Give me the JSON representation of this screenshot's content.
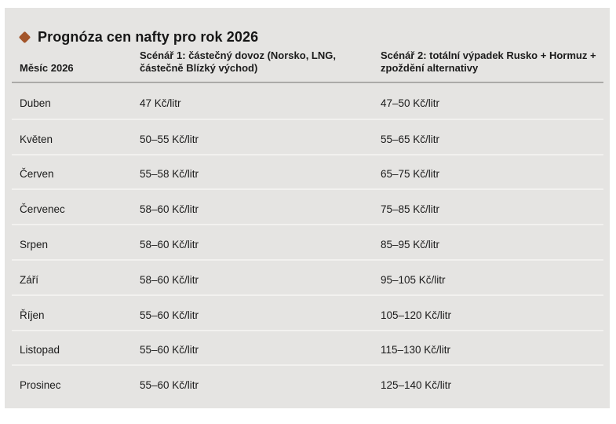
{
  "slide": {
    "title": "Prognóza cen nafty pro rok 2026",
    "accent_color": "#a3552a",
    "background_color": "#e5e4e2",
    "table": {
      "columns": [
        "Měsíc 2026",
        "Scénář 1: částečný dovoz (Norsko, LNG, částečně Blízký východ)",
        "Scénář 2: totální výpadek Rusko + Hormuz + zpoždění alternativy"
      ],
      "unit": "Kč/litr",
      "rows": [
        {
          "month": "Duben",
          "s1": "47 Kč/litr",
          "s2": "47–50 Kč/litr"
        },
        {
          "month": "Květen",
          "s1": "50–55 Kč/litr",
          "s2": "55–65 Kč/litr"
        },
        {
          "month": "Červen",
          "s1": "55–58 Kč/litr",
          "s2": "65–75 Kč/litr"
        },
        {
          "month": "Červenec",
          "s1": "58–60 Kč/litr",
          "s2": "75–85 Kč/litr"
        },
        {
          "month": "Srpen",
          "s1": "58–60 Kč/litr",
          "s2": "85–95 Kč/litr"
        },
        {
          "month": "Září",
          "s1": "58–60 Kč/litr",
          "s2": "95–105 Kč/litr"
        },
        {
          "month": "Říjen",
          "s1": "55–60 Kč/litr",
          "s2": "105–120 Kč/litr"
        },
        {
          "month": "Listopad",
          "s1": "55–60 Kč/litr",
          "s2": "115–130 Kč/litr"
        },
        {
          "month": "Prosinec",
          "s1": "55–60 Kč/litr",
          "s2": "125–140 Kč/litr"
        }
      ]
    }
  }
}
